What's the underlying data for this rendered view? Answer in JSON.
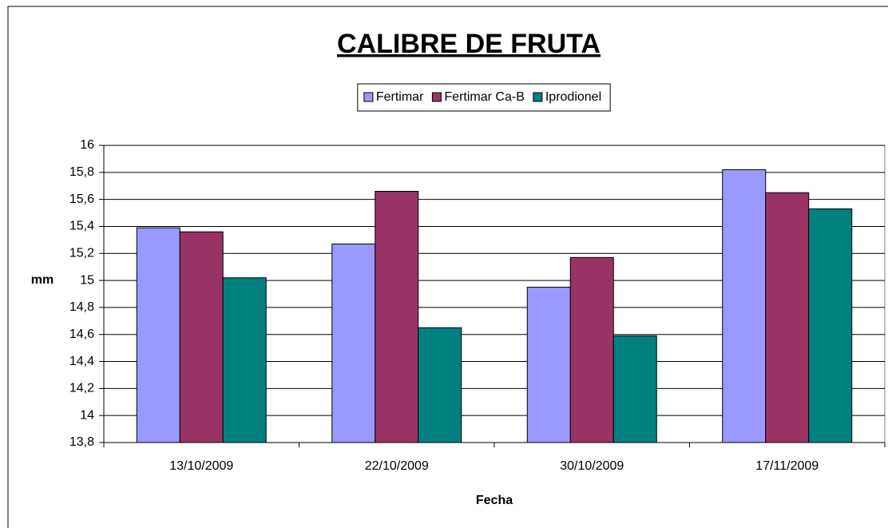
{
  "chart_data": {
    "type": "bar",
    "title": "CALIBRE DE FRUTA",
    "x_label": "Fecha",
    "y_label": "mm",
    "categories": [
      "13/10/2009",
      "22/10/2009",
      "30/10/2009",
      "17/11/2009"
    ],
    "series": [
      {
        "name": "Fertimar",
        "color": "#9999ff",
        "values": [
          15.39,
          15.27,
          14.95,
          15.82
        ]
      },
      {
        "name": "Fertimar Ca-B",
        "color": "#993366",
        "values": [
          15.36,
          15.66,
          15.17,
          15.65
        ]
      },
      {
        "name": "Iprodionel",
        "color": "#008080",
        "values": [
          15.02,
          14.65,
          14.59,
          15.53
        ]
      }
    ],
    "ylim": [
      13.8,
      16
    ],
    "yticks": [
      {
        "value": 13.8,
        "label": "13,8"
      },
      14,
      {
        "value": 14.2,
        "label": "14,2"
      },
      {
        "value": 14.4,
        "label": "14,4"
      },
      {
        "value": 14.6,
        "label": "14,6"
      },
      {
        "value": 14.8,
        "label": "14,8"
      },
      15,
      {
        "value": 15.2,
        "label": "15,2"
      },
      {
        "value": 15.4,
        "label": "15,4"
      },
      {
        "value": 15.6,
        "label": "15,6"
      },
      {
        "value": 15.8,
        "label": "15,8"
      },
      16
    ],
    "grid": true,
    "legend": "top"
  }
}
